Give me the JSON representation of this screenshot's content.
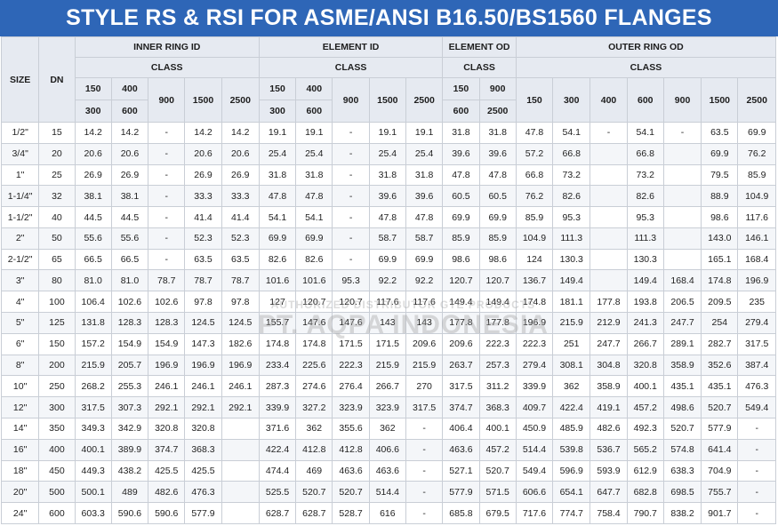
{
  "title": "STYLE RS & RSI FOR ASME/ANSI B16.50/BS1560 FLANGES",
  "headers": {
    "size": "SIZE",
    "dn": "DN",
    "class": "CLASS",
    "inner_ring_id": "INNER RING ID",
    "element_id": "ELEMENT ID",
    "element_od": "ELEMENT OD",
    "outer_ring_od": "OUTER RING OD",
    "inner_classes_top": [
      "150",
      "400",
      "900",
      "1500",
      "2500"
    ],
    "inner_classes_bottom": [
      "300",
      "600"
    ],
    "element_id_classes_top": [
      "150",
      "400",
      "900",
      "1500",
      "2500"
    ],
    "element_id_classes_bottom": [
      "300",
      "600"
    ],
    "element_od_classes_top": [
      "150",
      "900"
    ],
    "element_od_classes_bottom": [
      "600",
      "2500"
    ],
    "outer_classes": [
      "150",
      "300",
      "400",
      "600",
      "900",
      "1500",
      "2500"
    ]
  },
  "rows": [
    [
      "1/2\"",
      "15",
      "14.2",
      "14.2",
      "-",
      "14.2",
      "14.2",
      "19.1",
      "19.1",
      "-",
      "19.1",
      "19.1",
      "31.8",
      "31.8",
      "47.8",
      "54.1",
      "-",
      "54.1",
      "-",
      "63.5",
      "69.9"
    ],
    [
      "3/4\"",
      "20",
      "20.6",
      "20.6",
      "-",
      "20.6",
      "20.6",
      "25.4",
      "25.4",
      "-",
      "25.4",
      "25.4",
      "39.6",
      "39.6",
      "57.2",
      "66.8",
      "",
      "66.8",
      "",
      "69.9",
      "76.2"
    ],
    [
      "1\"",
      "25",
      "26.9",
      "26.9",
      "-",
      "26.9",
      "26.9",
      "31.8",
      "31.8",
      "-",
      "31.8",
      "31.8",
      "47.8",
      "47.8",
      "66.8",
      "73.2",
      "",
      "73.2",
      "",
      "79.5",
      "85.9"
    ],
    [
      "1-1/4\"",
      "32",
      "38.1",
      "38.1",
      "-",
      "33.3",
      "33.3",
      "47.8",
      "47.8",
      "-",
      "39.6",
      "39.6",
      "60.5",
      "60.5",
      "76.2",
      "82.6",
      "",
      "82.6",
      "",
      "88.9",
      "104.9"
    ],
    [
      "1-1/2\"",
      "40",
      "44.5",
      "44.5",
      "-",
      "41.4",
      "41.4",
      "54.1",
      "54.1",
      "-",
      "47.8",
      "47.8",
      "69.9",
      "69.9",
      "85.9",
      "95.3",
      "",
      "95.3",
      "",
      "98.6",
      "117.6"
    ],
    [
      "2\"",
      "50",
      "55.6",
      "55.6",
      "-",
      "52.3",
      "52.3",
      "69.9",
      "69.9",
      "-",
      "58.7",
      "58.7",
      "85.9",
      "85.9",
      "104.9",
      "111.3",
      "",
      "111.3",
      "",
      "143.0",
      "146.1"
    ],
    [
      "2-1/2\"",
      "65",
      "66.5",
      "66.5",
      "-",
      "63.5",
      "63.5",
      "82.6",
      "82.6",
      "-",
      "69.9",
      "69.9",
      "98.6",
      "98.6",
      "124",
      "130.3",
      "",
      "130.3",
      "",
      "165.1",
      "168.4"
    ],
    [
      "3\"",
      "80",
      "81.0",
      "81.0",
      "78.7",
      "78.7",
      "78.7",
      "101.6",
      "101.6",
      "95.3",
      "92.2",
      "92.2",
      "120.7",
      "120.7",
      "136.7",
      "149.4",
      "",
      "149.4",
      "168.4",
      "174.8",
      "196.9"
    ],
    [
      "4\"",
      "100",
      "106.4",
      "102.6",
      "102.6",
      "97.8",
      "97.8",
      "127",
      "120.7",
      "120.7",
      "117.6",
      "117.6",
      "149.4",
      "149.4",
      "174.8",
      "181.1",
      "177.8",
      "193.8",
      "206.5",
      "209.5",
      "235"
    ],
    [
      "5\"",
      "125",
      "131.8",
      "128.3",
      "128.3",
      "124.5",
      "124.5",
      "155.7",
      "147.6",
      "147.6",
      "143",
      "143",
      "177.8",
      "177.8",
      "196.9",
      "215.9",
      "212.9",
      "241.3",
      "247.7",
      "254",
      "279.4"
    ],
    [
      "6\"",
      "150",
      "157.2",
      "154.9",
      "154.9",
      "147.3",
      "182.6",
      "174.8",
      "174.8",
      "171.5",
      "171.5",
      "209.6",
      "209.6",
      "222.3",
      "222.3",
      "251",
      "247.7",
      "266.7",
      "289.1",
      "282.7",
      "317.5"
    ],
    [
      "8\"",
      "200",
      "215.9",
      "205.7",
      "196.9",
      "196.9",
      "196.9",
      "233.4",
      "225.6",
      "222.3",
      "215.9",
      "215.9",
      "263.7",
      "257.3",
      "279.4",
      "308.1",
      "304.8",
      "320.8",
      "358.9",
      "352.6",
      "387.4"
    ],
    [
      "10\"",
      "250",
      "268.2",
      "255.3",
      "246.1",
      "246.1",
      "246.1",
      "287.3",
      "274.6",
      "276.4",
      "266.7",
      "270",
      "317.5",
      "311.2",
      "339.9",
      "362",
      "358.9",
      "400.1",
      "435.1",
      "435.1",
      "476.3"
    ],
    [
      "12\"",
      "300",
      "317.5",
      "307.3",
      "292.1",
      "292.1",
      "292.1",
      "339.9",
      "327.2",
      "323.9",
      "323.9",
      "317.5",
      "374.7",
      "368.3",
      "409.7",
      "422.4",
      "419.1",
      "457.2",
      "498.6",
      "520.7",
      "549.4"
    ],
    [
      "14\"",
      "350",
      "349.3",
      "342.9",
      "320.8",
      "320.8",
      "",
      "371.6",
      "362",
      "355.6",
      "362",
      "-",
      "406.4",
      "400.1",
      "450.9",
      "485.9",
      "482.6",
      "492.3",
      "520.7",
      "577.9",
      "-"
    ],
    [
      "16\"",
      "400",
      "400.1",
      "389.9",
      "374.7",
      "368.3",
      "",
      "422.4",
      "412.8",
      "412.8",
      "406.6",
      "-",
      "463.6",
      "457.2",
      "514.4",
      "539.8",
      "536.7",
      "565.2",
      "574.8",
      "641.4",
      "-"
    ],
    [
      "18\"",
      "450",
      "449.3",
      "438.2",
      "425.5",
      "425.5",
      "",
      "474.4",
      "469",
      "463.6",
      "463.6",
      "-",
      "527.1",
      "520.7",
      "549.4",
      "596.9",
      "593.9",
      "612.9",
      "638.3",
      "704.9",
      "-"
    ],
    [
      "20\"",
      "500",
      "500.1",
      "489",
      "482.6",
      "476.3",
      "",
      "525.5",
      "520.7",
      "520.7",
      "514.4",
      "-",
      "577.9",
      "571.5",
      "606.6",
      "654.1",
      "647.7",
      "682.8",
      "698.5",
      "755.7",
      "-"
    ],
    [
      "24\"",
      "600",
      "603.3",
      "590.6",
      "590.6",
      "577.9",
      "",
      "628.7",
      "628.7",
      "528.7",
      "616",
      "-",
      "685.8",
      "679.5",
      "717.6",
      "774.7",
      "758.4",
      "790.7",
      "838.2",
      "901.7",
      "-"
    ]
  ],
  "watermark": {
    "line1": "AUTHORIZED DISTRIBUTOR GTE PRODUCTS",
    "line2": "PT. AQPA INDONESIA"
  }
}
